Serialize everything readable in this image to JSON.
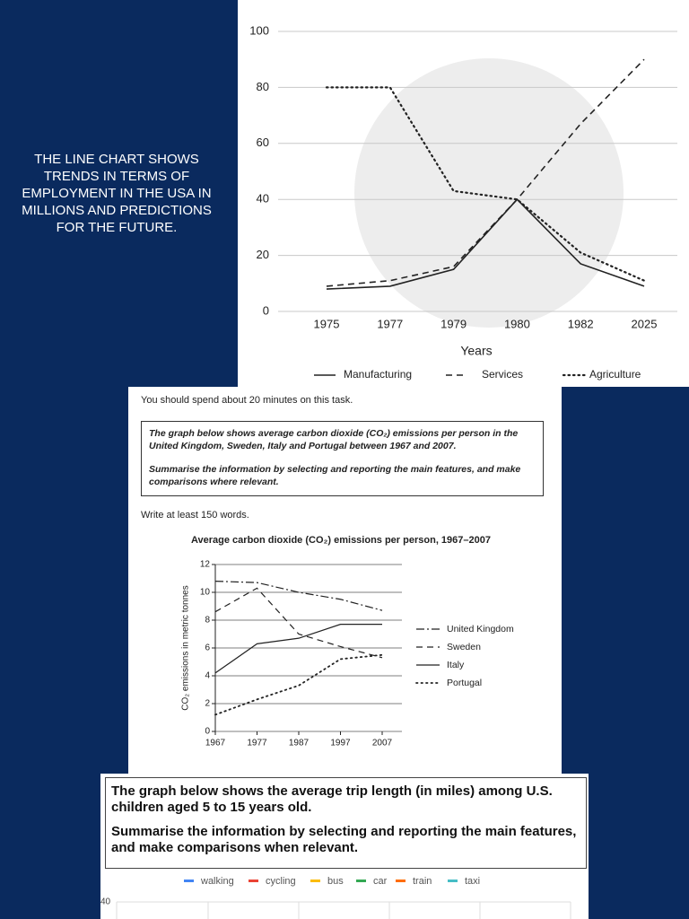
{
  "caption": "THE LINE CHART SHOWS TRENDS IN TERMS OF EMPLOYMENT IN THE USA IN MILLIONS AND PREDICTIONS FOR THE FUTURE.",
  "chart_data": [
    {
      "type": "line",
      "xlabel": "Years",
      "categories": [
        "1975",
        "1977",
        "1979",
        "1980",
        "1982",
        "2025"
      ],
      "ylim": [
        0,
        100
      ],
      "yticks": [
        0,
        20,
        40,
        60,
        80,
        100
      ],
      "grid": true,
      "series": [
        {
          "name": "Manufacturing",
          "color": "#222222",
          "line_style": "solid",
          "values": [
            8,
            9,
            15,
            40,
            17,
            9
          ]
        },
        {
          "name": "Services",
          "color": "#222222",
          "line_style": "dashed",
          "values": [
            9,
            11,
            16,
            40,
            67,
            90
          ]
        },
        {
          "name": "Agriculture",
          "color": "#222222",
          "line_style": "dotted",
          "values": [
            80,
            80,
            43,
            40,
            21,
            11
          ]
        }
      ]
    },
    {
      "type": "line",
      "intro": "You should spend about 20 minutes on this task.",
      "prompt": [
        "The graph below shows average carbon dioxide (CO₂) emissions per person in the United Kingdom, Sweden, Italy and Portugal between 1967 and 2007.",
        "Summarise the information by selecting and reporting the main features, and make comparisons where relevant."
      ],
      "word_note": "Write at least 150 words.",
      "title": "Average carbon dioxide (CO₂) emissions per person, 1967–2007",
      "ylabel": "CO₂ emissions in metric tonnes",
      "categories": [
        "1967",
        "1977",
        "1987",
        "1997",
        "2007"
      ],
      "ylim": [
        0,
        12
      ],
      "yticks": [
        0,
        2,
        4,
        6,
        8,
        10,
        12
      ],
      "grid": true,
      "series": [
        {
          "name": "United Kingdom",
          "color": "#222222",
          "line_style": "dashdot",
          "values": [
            10.8,
            10.7,
            10.0,
            9.5,
            8.7
          ]
        },
        {
          "name": "Sweden",
          "color": "#222222",
          "line_style": "dashed",
          "values": [
            8.6,
            10.3,
            7.0,
            6.1,
            5.3
          ]
        },
        {
          "name": "Italy",
          "color": "#222222",
          "line_style": "solid",
          "values": [
            4.2,
            6.3,
            6.7,
            7.7,
            7.7
          ]
        },
        {
          "name": "Portugal",
          "color": "#222222",
          "line_style": "dotted",
          "values": [
            1.2,
            2.3,
            3.3,
            5.2,
            5.5
          ]
        }
      ]
    },
    {
      "type": "line",
      "prompt": [
        "The graph below shows the average trip length (in miles) among U.S. children aged 5 to 15 years old.",
        "Summarise the information by selecting and reporting the main features, and make comparisons when relevant."
      ],
      "yticks": [
        40
      ],
      "series": [
        {
          "name": "walking",
          "color": "#4285f4"
        },
        {
          "name": "cycling",
          "color": "#ea4335"
        },
        {
          "name": "bus",
          "color": "#fbbc04"
        },
        {
          "name": "car",
          "color": "#34a853"
        },
        {
          "name": "train",
          "color": "#ff6d01"
        },
        {
          "name": "taxi",
          "color": "#46bdc6"
        }
      ]
    }
  ]
}
